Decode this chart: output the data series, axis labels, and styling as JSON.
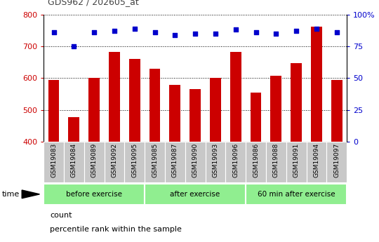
{
  "title": "GDS962 / 202605_at",
  "categories": [
    "GSM19083",
    "GSM19084",
    "GSM19089",
    "GSM19092",
    "GSM19095",
    "GSM19085",
    "GSM19087",
    "GSM19090",
    "GSM19093",
    "GSM19096",
    "GSM19086",
    "GSM19088",
    "GSM19091",
    "GSM19094",
    "GSM19097"
  ],
  "bar_values": [
    595,
    478,
    600,
    683,
    660,
    630,
    578,
    565,
    600,
    683,
    555,
    608,
    648,
    762,
    595
  ],
  "percentile_values": [
    86,
    75,
    86,
    87,
    89,
    86,
    84,
    85,
    85,
    88,
    86,
    85,
    87,
    89,
    86
  ],
  "bar_color": "#cc0000",
  "dot_color": "#0000cc",
  "ylim_left": [
    400,
    800
  ],
  "ylim_right": [
    0,
    100
  ],
  "yticks_left": [
    400,
    500,
    600,
    700,
    800
  ],
  "yticks_right": [
    0,
    25,
    50,
    75,
    100
  ],
  "yticklabels_right": [
    "0",
    "25",
    "50",
    "75",
    "100%"
  ],
  "groups": [
    {
      "label": "before exercise",
      "start": 0,
      "end": 5
    },
    {
      "label": "after exercise",
      "start": 5,
      "end": 10
    },
    {
      "label": "60 min after exercise",
      "start": 10,
      "end": 15
    }
  ],
  "group_color": "#90ee90",
  "tick_label_bg": "#c8c8c8",
  "legend_count_label": "count",
  "legend_pct_label": "percentile rank within the sample",
  "time_label": "time",
  "title_color": "#444444",
  "left_axis_color": "#cc0000",
  "right_axis_color": "#0000cc",
  "fig_bg": "#ffffff",
  "plot_bg": "#ffffff"
}
